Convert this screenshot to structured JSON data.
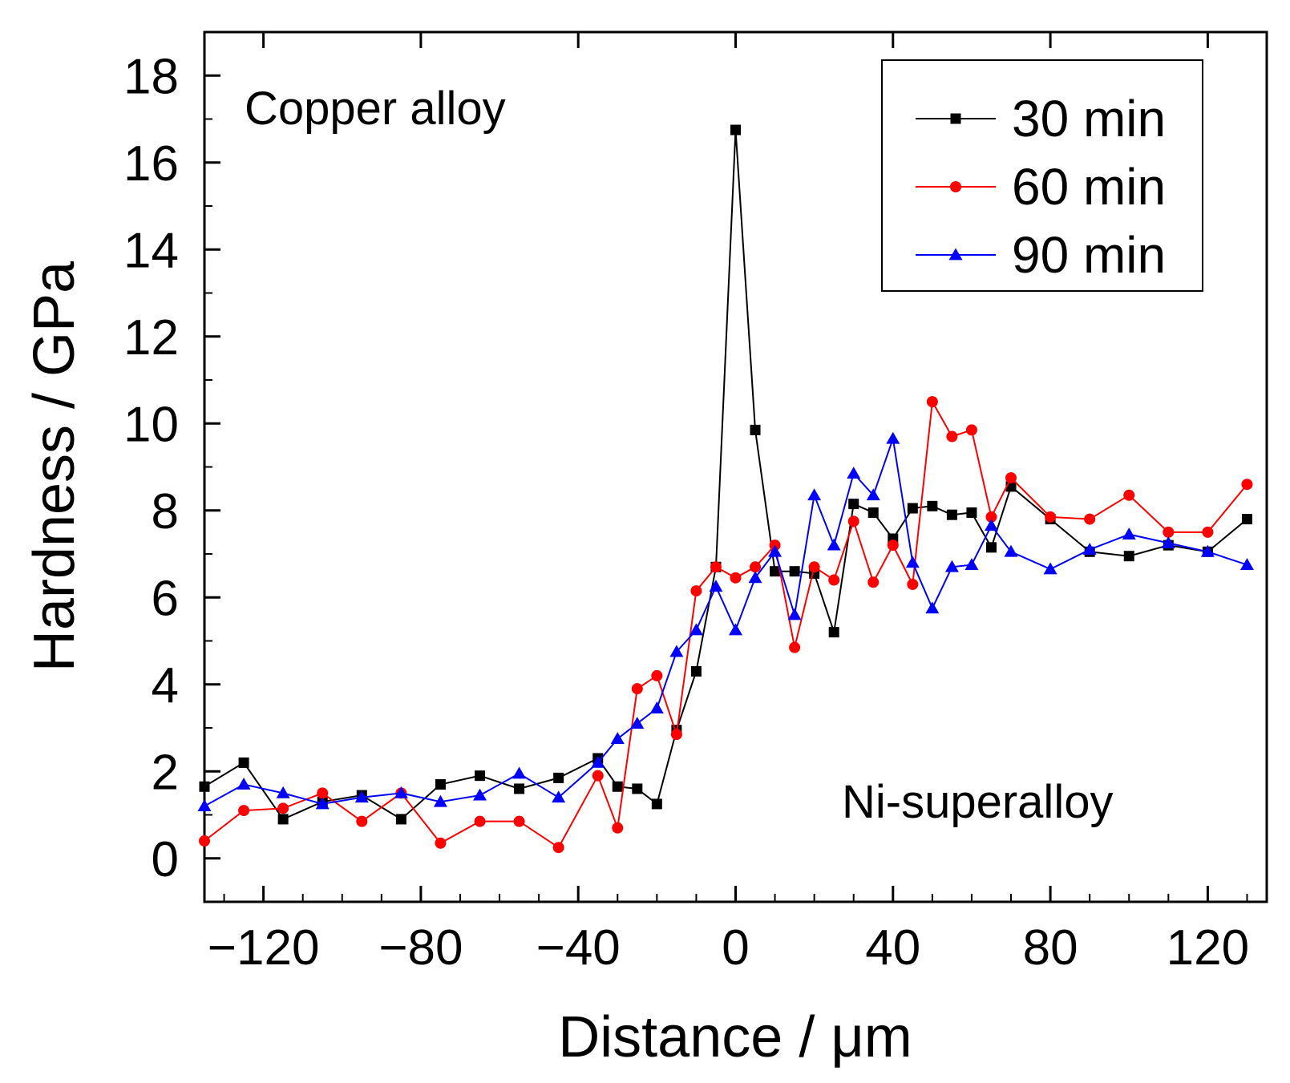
{
  "chart_data": {
    "type": "line",
    "title": "",
    "xlabel": "Distance / μm",
    "ylabel": "Hardness / GPa",
    "xlim": [
      -135,
      135
    ],
    "ylim": [
      -1,
      19
    ],
    "xticks": [
      -120,
      -80,
      -40,
      0,
      40,
      80,
      120
    ],
    "xtick_labels": [
      "−120",
      "−80",
      "−40",
      "0",
      "40",
      "80",
      "120"
    ],
    "yticks": [
      0,
      2,
      4,
      6,
      8,
      10,
      12,
      14,
      16,
      18
    ],
    "ytick_labels": [
      "0",
      "2",
      "4",
      "6",
      "8",
      "10",
      "12",
      "14",
      "16",
      "18"
    ],
    "grid": false,
    "legend_position": "top-right",
    "annotations": [
      {
        "text": "Copper alloy",
        "position": "top-left"
      },
      {
        "text": "Ni-superalloy",
        "position": "bottom-right"
      }
    ],
    "series": [
      {
        "name": "30 min",
        "color": "#000000",
        "marker": "square",
        "x": [
          -135,
          -125,
          -115,
          -105,
          -95,
          -85,
          -75,
          -65,
          -55,
          -45,
          -35,
          -30,
          -25,
          -20,
          -15,
          -10,
          -5,
          0,
          5,
          10,
          15,
          20,
          25,
          30,
          35,
          40,
          45,
          50,
          55,
          60,
          65,
          70,
          80,
          90,
          100,
          110,
          120,
          130
        ],
        "y": [
          1.65,
          2.2,
          0.9,
          1.3,
          1.45,
          0.9,
          1.7,
          1.9,
          1.6,
          1.85,
          2.3,
          1.65,
          1.6,
          1.25,
          2.95,
          4.3,
          6.7,
          16.75,
          9.85,
          6.6,
          6.6,
          6.55,
          5.2,
          8.15,
          7.95,
          7.35,
          8.05,
          8.1,
          7.9,
          7.95,
          7.15,
          8.55,
          7.8,
          7.05,
          6.95,
          7.2,
          7.05,
          7.8
        ]
      },
      {
        "name": "60 min",
        "color": "#ff0000",
        "marker": "circle",
        "x": [
          -135,
          -125,
          -115,
          -105,
          -95,
          -85,
          -75,
          -65,
          -55,
          -45,
          -35,
          -30,
          -25,
          -20,
          -15,
          -10,
          -5,
          0,
          5,
          10,
          15,
          20,
          25,
          30,
          35,
          40,
          45,
          50,
          55,
          60,
          65,
          70,
          80,
          90,
          100,
          110,
          120,
          130
        ],
        "y": [
          0.4,
          1.1,
          1.15,
          1.5,
          0.85,
          1.5,
          0.35,
          0.85,
          0.85,
          0.25,
          1.9,
          0.7,
          3.9,
          4.2,
          2.85,
          6.15,
          6.7,
          6.45,
          6.7,
          7.2,
          4.85,
          6.7,
          6.4,
          7.75,
          6.35,
          7.2,
          6.3,
          10.5,
          9.7,
          9.85,
          7.85,
          8.75,
          7.85,
          7.8,
          8.35,
          7.5,
          7.5,
          8.6
        ]
      },
      {
        "name": "90 min",
        "color": "#0000ff",
        "marker": "triangle",
        "x": [
          -135,
          -125,
          -115,
          -105,
          -95,
          -85,
          -75,
          -65,
          -55,
          -45,
          -35,
          -30,
          -25,
          -20,
          -15,
          -10,
          -5,
          0,
          5,
          10,
          15,
          20,
          25,
          30,
          35,
          40,
          45,
          50,
          55,
          60,
          65,
          70,
          80,
          90,
          100,
          110,
          120,
          130
        ],
        "y": [
          1.2,
          1.7,
          1.5,
          1.25,
          1.4,
          1.5,
          1.3,
          1.45,
          1.95,
          1.4,
          2.2,
          2.75,
          3.1,
          3.45,
          4.75,
          5.25,
          6.25,
          5.25,
          6.45,
          7.05,
          5.6,
          8.35,
          7.2,
          8.85,
          8.35,
          9.65,
          6.8,
          5.75,
          6.7,
          6.75,
          7.65,
          7.05,
          6.65,
          7.1,
          7.45,
          7.25,
          7.05,
          6.75
        ]
      }
    ]
  }
}
